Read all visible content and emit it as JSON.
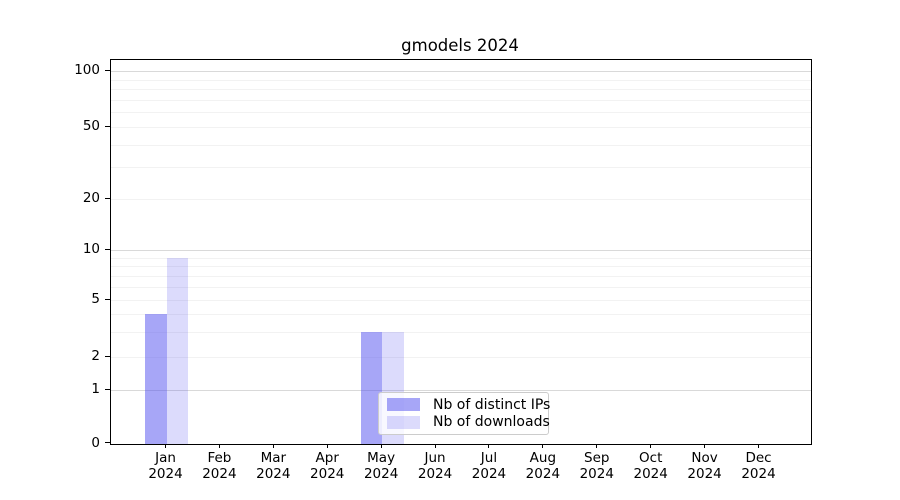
{
  "chart_data": {
    "type": "bar",
    "title": "gmodels 2024",
    "xlabel": "",
    "ylabel": "",
    "categories": [
      {
        "month": "Jan",
        "year": "2024"
      },
      {
        "month": "Feb",
        "year": "2024"
      },
      {
        "month": "Mar",
        "year": "2024"
      },
      {
        "month": "Apr",
        "year": "2024"
      },
      {
        "month": "May",
        "year": "2024"
      },
      {
        "month": "Jun",
        "year": "2024"
      },
      {
        "month": "Jul",
        "year": "2024"
      },
      {
        "month": "Aug",
        "year": "2024"
      },
      {
        "month": "Sep",
        "year": "2024"
      },
      {
        "month": "Oct",
        "year": "2024"
      },
      {
        "month": "Nov",
        "year": "2024"
      },
      {
        "month": "Dec",
        "year": "2024"
      }
    ],
    "series": [
      {
        "name": "Nb of distinct IPs",
        "base_color": "#4f4def",
        "alpha": 0.5,
        "rendered_color": "#a7a6f7",
        "values": [
          4,
          0,
          0,
          0,
          3,
          0,
          0,
          0,
          0,
          0,
          0,
          0
        ]
      },
      {
        "name": "Nb of downloads",
        "base_color": "#4f4def",
        "alpha": 0.2,
        "rendered_color": "#dbdaf9",
        "values": [
          9,
          0,
          0,
          0,
          3,
          0,
          0,
          0,
          0,
          0,
          0,
          0
        ]
      }
    ],
    "yscale": "log above 1, linear 0-1",
    "ylim": [
      0,
      110
    ],
    "y_tick_labels": [
      100,
      50,
      20,
      10,
      5,
      2,
      1,
      0
    ],
    "y_major_gridlines": [
      1,
      10,
      100
    ],
    "y_minor_gridlines": [
      2,
      3,
      4,
      5,
      6,
      7,
      8,
      9,
      20,
      30,
      40,
      50,
      60,
      70,
      80,
      90
    ],
    "grid": "horizontal only",
    "legend_position": "lower center",
    "colors": {
      "major_grid": "#d9d9d9",
      "minor_grid": "#f2f2f2",
      "axis": "#000000",
      "text": "#000000",
      "legend_border": "#cccccc",
      "background": "#ffffff"
    }
  }
}
